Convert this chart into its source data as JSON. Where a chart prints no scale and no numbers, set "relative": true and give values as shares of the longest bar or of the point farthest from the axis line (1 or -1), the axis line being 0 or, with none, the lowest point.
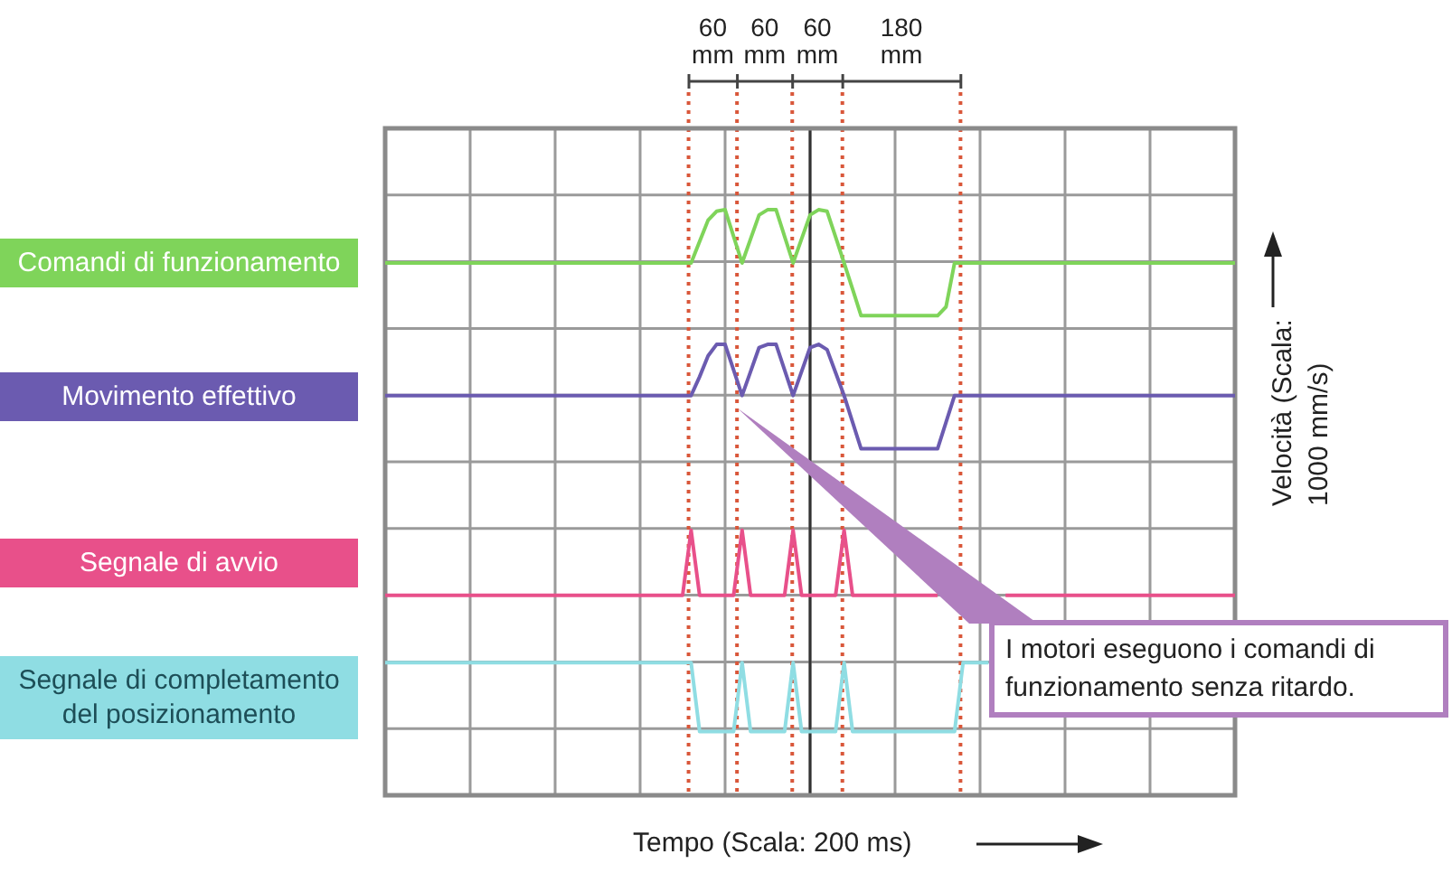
{
  "chart_data": {
    "type": "line",
    "relative": true,
    "xlabel": "Tempo (Scala: 200 ms)",
    "ylabel": "Velocità (Scala: 1000 mm/s)",
    "categories": [
      null,
      null,
      null,
      null,
      null,
      null,
      null,
      null,
      null,
      null,
      null,
      null,
      null,
      null,
      null,
      null,
      null,
      null,
      null,
      null,
      null,
      null,
      null,
      null,
      null,
      null,
      null,
      null,
      null,
      null,
      null,
      null,
      null,
      null,
      null,
      null,
      null,
      null,
      null,
      null,
      null,
      null,
      null,
      null,
      null,
      null,
      null,
      null,
      null,
      null,
      null,
      null,
      null,
      null,
      null,
      null,
      null,
      null,
      null,
      null,
      null,
      null,
      null,
      null,
      null,
      null,
      null,
      null,
      null,
      null,
      null,
      null,
      null,
      null,
      null,
      null,
      null,
      null,
      null,
      null,
      null,
      null,
      null,
      null,
      null,
      null,
      null,
      null,
      null,
      null,
      null,
      null,
      null,
      null,
      null,
      null,
      null,
      null,
      null,
      null,
      null
    ],
    "tick_labels": false,
    "grid": true,
    "legend": false,
    "marker": "none",
    "line_style": "solid",
    "series": [
      {
        "name": "Comandi di funzionamento",
        "color": "#7fd45a",
        "values": [
          0.898,
          0.898,
          0.898,
          0.898,
          0.898,
          0.898,
          0.898,
          0.898,
          0.898,
          0.898,
          0.898,
          0.898,
          0.898,
          0.898,
          0.898,
          0.898,
          0.898,
          0.898,
          0.898,
          0.898,
          0.898,
          0.898,
          0.898,
          0.898,
          0.898,
          0.898,
          0.898,
          0.898,
          0.898,
          0.898,
          0.898,
          0.898,
          0.898,
          0.898,
          0.898,
          0.898,
          0.898,
          0.939,
          0.98,
          0.997,
          1.0,
          0.949,
          0.898,
          0.944,
          0.99,
          1.0,
          1.0,
          0.949,
          0.898,
          0.944,
          0.99,
          1.0,
          0.997,
          0.948,
          0.898,
          0.848,
          0.797,
          0.797,
          0.797,
          0.797,
          0.797,
          0.797,
          0.797,
          0.797,
          0.797,
          0.797,
          0.814,
          0.898,
          0.898,
          0.898,
          0.898,
          0.898,
          0.898,
          0.898,
          0.898,
          0.898,
          0.898,
          0.898,
          0.898,
          0.898,
          0.898,
          0.898,
          0.898,
          0.898,
          0.898,
          0.898,
          0.898,
          0.898,
          0.898,
          0.898,
          0.898,
          0.898,
          0.898,
          0.898,
          0.898,
          0.898,
          0.898,
          0.898,
          0.898,
          0.898,
          0.898
        ]
      },
      {
        "name": "Movimento effettivo",
        "color": "#6b5bb0",
        "values": [
          0.644,
          0.644,
          0.644,
          0.644,
          0.644,
          0.644,
          0.644,
          0.644,
          0.644,
          0.644,
          0.644,
          0.644,
          0.644,
          0.644,
          0.644,
          0.644,
          0.644,
          0.644,
          0.644,
          0.644,
          0.644,
          0.644,
          0.644,
          0.644,
          0.644,
          0.644,
          0.644,
          0.644,
          0.644,
          0.644,
          0.644,
          0.644,
          0.644,
          0.644,
          0.644,
          0.644,
          0.644,
          0.68,
          0.72,
          0.742,
          0.742,
          0.693,
          0.644,
          0.69,
          0.736,
          0.742,
          0.742,
          0.693,
          0.644,
          0.69,
          0.736,
          0.742,
          0.732,
          0.688,
          0.644,
          0.593,
          0.542,
          0.542,
          0.542,
          0.542,
          0.542,
          0.542,
          0.542,
          0.542,
          0.542,
          0.542,
          0.593,
          0.644,
          0.644,
          0.644,
          0.644,
          0.644,
          0.644,
          0.644,
          0.644,
          0.644,
          0.644,
          0.644,
          0.644,
          0.644,
          0.644,
          0.644,
          0.644,
          0.644,
          0.644,
          0.644,
          0.644,
          0.644,
          0.644,
          0.644,
          0.644,
          0.644,
          0.644,
          0.644,
          0.644,
          0.644,
          0.644,
          0.644,
          0.644,
          0.644,
          0.644
        ]
      },
      {
        "name": "Segnale di avvio",
        "color": "#e8508a",
        "values": [
          0.261,
          0.261,
          0.261,
          0.261,
          0.261,
          0.261,
          0.261,
          0.261,
          0.261,
          0.261,
          0.261,
          0.261,
          0.261,
          0.261,
          0.261,
          0.261,
          0.261,
          0.261,
          0.261,
          0.261,
          0.261,
          0.261,
          0.261,
          0.261,
          0.261,
          0.261,
          0.261,
          0.261,
          0.261,
          0.261,
          0.261,
          0.261,
          0.261,
          0.261,
          0.261,
          0.261,
          0.386,
          0.261,
          0.261,
          0.261,
          0.261,
          0.261,
          0.386,
          0.261,
          0.261,
          0.261,
          0.261,
          0.261,
          0.386,
          0.261,
          0.261,
          0.261,
          0.261,
          0.261,
          0.386,
          0.261,
          0.261,
          0.261,
          0.261,
          0.261,
          0.261,
          0.261,
          0.261,
          0.261,
          0.261,
          0.261,
          null,
          null,
          null,
          null,
          null,
          null,
          null,
          0.261,
          0.261,
          0.261,
          0.261,
          0.261,
          0.261,
          0.261,
          0.261,
          0.261,
          0.261,
          0.261,
          0.261,
          0.261,
          0.261,
          0.261,
          0.261,
          0.261,
          0.261,
          0.261,
          0.261,
          0.261,
          0.261,
          0.261,
          0.261,
          0.261,
          0.261,
          0.261,
          0.261
        ]
      },
      {
        "name": "Segnale di completamento del posizionamento",
        "color": "#8fdde3",
        "values": [
          0.132,
          0.132,
          0.132,
          0.132,
          0.132,
          0.132,
          0.132,
          0.132,
          0.132,
          0.132,
          0.132,
          0.132,
          0.132,
          0.132,
          0.132,
          0.132,
          0.132,
          0.132,
          0.132,
          0.132,
          0.132,
          0.132,
          0.132,
          0.132,
          0.132,
          0.132,
          0.132,
          0.132,
          0.132,
          0.132,
          0.132,
          0.132,
          0.132,
          0.132,
          0.132,
          0.132,
          0.132,
          0,
          0,
          0,
          0,
          0,
          0.132,
          0,
          0,
          0,
          0,
          0,
          0.132,
          0,
          0,
          0,
          0,
          0,
          0.132,
          0,
          0,
          0,
          0,
          0,
          0,
          0,
          0,
          0,
          0,
          0,
          0,
          0,
          0.132,
          0.132,
          0.132,
          0.132,
          null,
          null,
          null,
          null,
          null,
          null,
          null,
          null,
          null,
          null,
          null,
          null,
          null,
          null,
          null,
          null,
          null,
          null,
          null,
          null,
          null,
          null,
          null,
          null,
          null,
          null,
          null,
          null,
          null
        ]
      }
    ],
    "annotations": [
      "60 mm",
      "60 mm",
      "60 mm",
      "180 mm",
      "I motori eseguono i comandi di funzionamento senza ritardo."
    ]
  }
}
